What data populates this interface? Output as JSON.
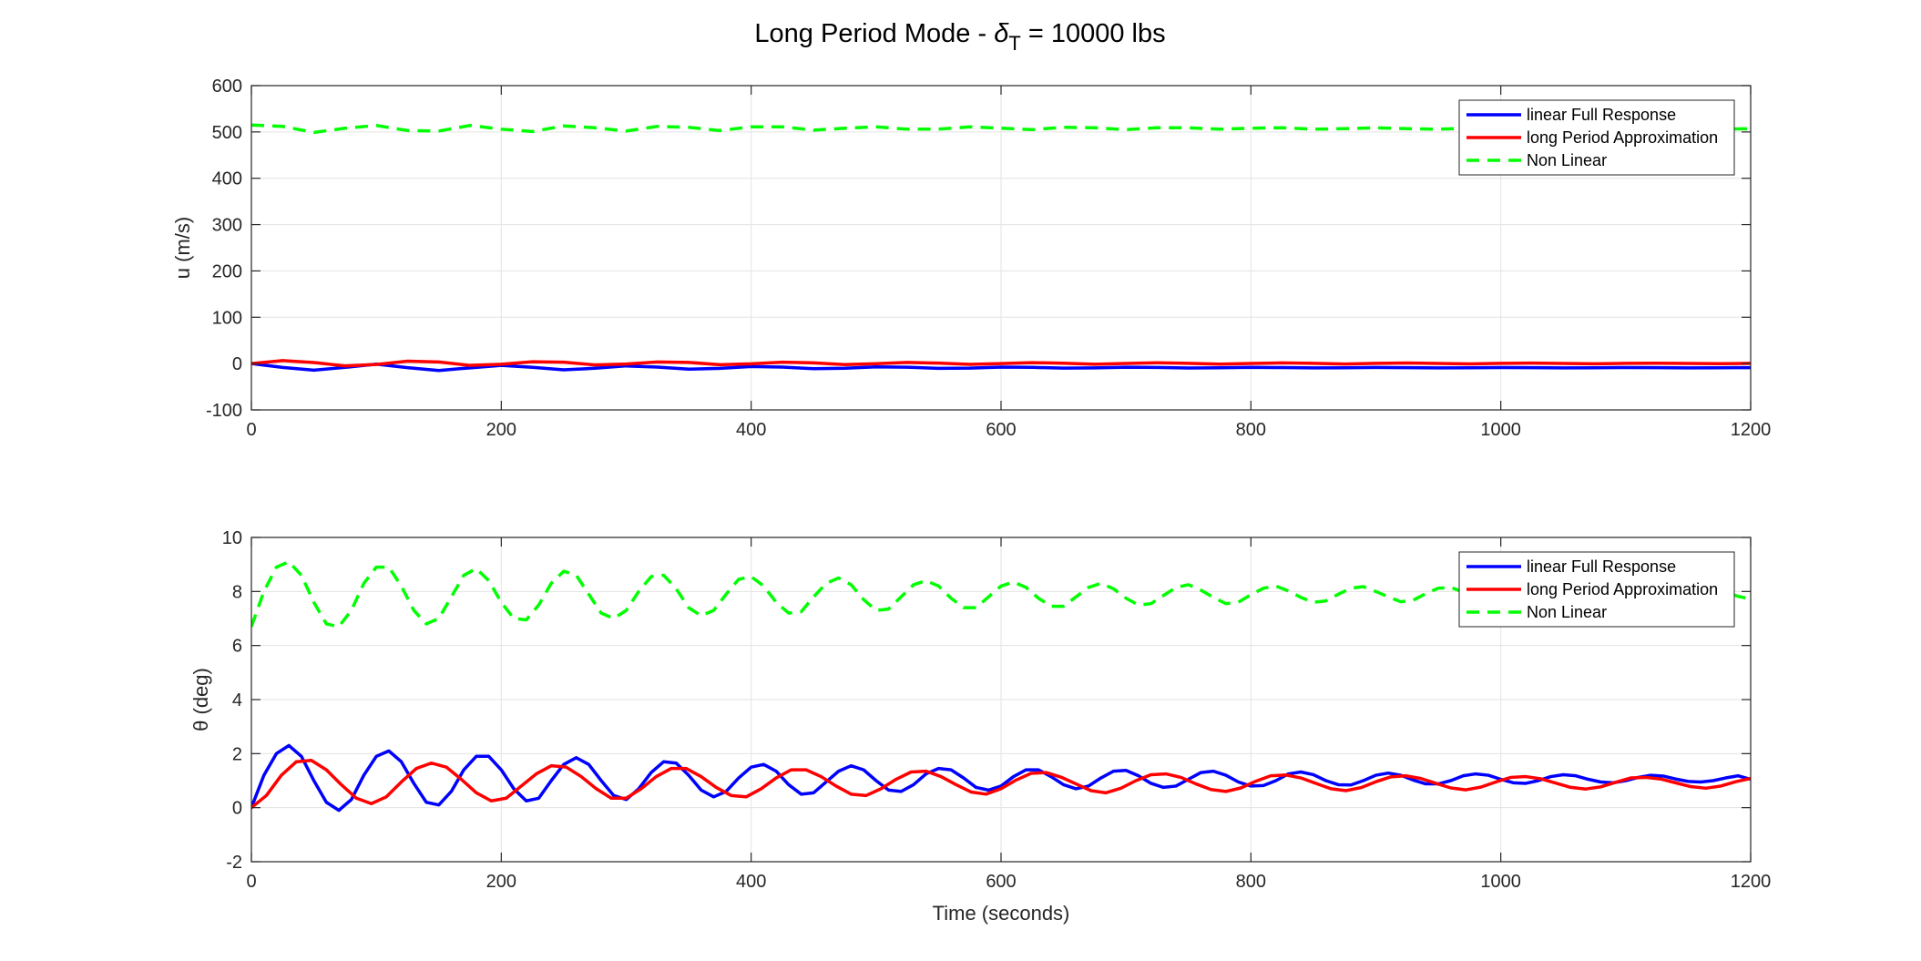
{
  "figure": {
    "title_main": "Long Period Mode - ",
    "title_symbol": "δ",
    "title_subscript": "T",
    "title_rest": " = 10000 lbs"
  },
  "chart_data": [
    {
      "type": "line",
      "xlabel": "",
      "ylabel": "u (m/s)",
      "xlim": [
        0,
        1200
      ],
      "ylim": [
        -100,
        600
      ],
      "xticks": [
        0,
        200,
        400,
        600,
        800,
        1000,
        1200
      ],
      "yticks": [
        -100,
        0,
        100,
        200,
        300,
        400,
        500,
        600
      ],
      "xtick_labels": [
        "0",
        "200",
        "400",
        "600",
        "800",
        "1000",
        "1200"
      ],
      "ytick_labels": [
        "-100",
        "0",
        "100",
        "200",
        "300",
        "400",
        "500",
        "600"
      ],
      "grid": true,
      "legend_position": "top-right",
      "series": [
        {
          "name": "linear Full Response",
          "color": "#0000ff",
          "dash": "solid",
          "x": [
            0,
            25,
            50,
            75,
            100,
            125,
            150,
            175,
            200,
            225,
            250,
            275,
            300,
            325,
            350,
            375,
            400,
            425,
            450,
            475,
            500,
            525,
            550,
            575,
            600,
            625,
            650,
            675,
            700,
            725,
            750,
            775,
            800,
            825,
            850,
            875,
            900,
            925,
            950,
            975,
            1000,
            1025,
            1050,
            1075,
            1100,
            1125,
            1150,
            1175,
            1200
          ],
          "y": [
            0,
            -8.4,
            -14.3,
            -8.2,
            -1.3,
            -8.8,
            -14.9,
            -9.2,
            -3.8,
            -8.1,
            -13.5,
            -10.1,
            -5.0,
            -7.6,
            -12.0,
            -10.2,
            -6.4,
            -7.6,
            -11.0,
            -10.1,
            -7.0,
            -7.9,
            -10.3,
            -9.7,
            -7.5,
            -8.2,
            -9.8,
            -9.3,
            -7.8,
            -8.4,
            -9.6,
            -9.1,
            -8.1,
            -8.6,
            -9.4,
            -9.0,
            -8.3,
            -8.7,
            -9.3,
            -9.0,
            -8.5,
            -8.8,
            -9.2,
            -9.0,
            -8.6,
            -8.8,
            -9.2,
            -9.0,
            -8.8
          ]
        },
        {
          "name": "long Period Approximation",
          "color": "#ff0000",
          "dash": "solid",
          "x": [
            0,
            25,
            50,
            75,
            100,
            125,
            150,
            175,
            200,
            225,
            250,
            275,
            300,
            325,
            350,
            375,
            400,
            425,
            450,
            475,
            500,
            525,
            550,
            575,
            600,
            625,
            650,
            675,
            700,
            725,
            750,
            775,
            800,
            825,
            850,
            875,
            900,
            925,
            950,
            975,
            1000,
            1025,
            1050,
            1075,
            1100,
            1125,
            1150,
            1175,
            1200
          ],
          "y": [
            0,
            6.5,
            2.2,
            -5.0,
            -2.0,
            5.2,
            3.4,
            -4.0,
            -1.5,
            4.0,
            3.0,
            -3.0,
            -1.0,
            3.5,
            2.5,
            -2.5,
            -0.5,
            3.0,
            1.5,
            -2.2,
            -0.2,
            2.4,
            1.0,
            -1.8,
            0,
            2.0,
            0.8,
            -1.5,
            0.2,
            1.7,
            0.6,
            -1.2,
            0.4,
            1.4,
            0.5,
            -0.9,
            0.5,
            1.2,
            0.4,
            -0.7,
            0.5,
            1.0,
            0.4,
            -0.5,
            0.5,
            0.9,
            0.4,
            -0.3,
            0.5
          ]
        },
        {
          "name": "Non Linear",
          "color": "#00ff00",
          "dash": "dashed",
          "x": [
            0,
            25,
            50,
            75,
            100,
            125,
            150,
            175,
            200,
            225,
            250,
            275,
            300,
            325,
            350,
            375,
            400,
            425,
            450,
            475,
            500,
            525,
            550,
            575,
            600,
            625,
            650,
            675,
            700,
            725,
            750,
            775,
            800,
            825,
            850,
            875,
            900,
            925,
            950,
            975,
            1000,
            1025,
            1050,
            1075,
            1100,
            1125,
            1150,
            1175,
            1200
          ],
          "y": [
            515,
            512,
            499,
            508,
            514,
            503,
            502,
            514,
            506,
            501,
            513,
            509,
            502,
            512,
            510,
            503,
            511,
            511,
            504,
            508,
            511,
            506,
            506,
            511,
            508,
            505,
            510,
            509,
            505,
            509,
            509,
            506,
            508,
            509,
            506,
            507,
            509,
            507,
            506,
            508,
            507,
            506,
            508,
            507,
            506,
            508,
            507,
            506,
            507
          ]
        }
      ]
    },
    {
      "type": "line",
      "xlabel": "Time (seconds)",
      "ylabel": "θ (deg)",
      "xlim": [
        0,
        1200
      ],
      "ylim": [
        -2,
        10
      ],
      "xticks": [
        0,
        200,
        400,
        600,
        800,
        1000,
        1200
      ],
      "yticks": [
        -2,
        0,
        2,
        4,
        6,
        8,
        10
      ],
      "xtick_labels": [
        "0",
        "200",
        "400",
        "600",
        "800",
        "1000",
        "1200"
      ],
      "ytick_labels": [
        "-2",
        "0",
        "2",
        "4",
        "6",
        "8",
        "10"
      ],
      "grid": true,
      "legend_position": "top-right",
      "series": [
        {
          "name": "linear Full Response",
          "color": "#0000ff",
          "dash": "solid",
          "x": [
            0,
            10,
            20,
            30,
            40,
            50,
            60,
            70,
            80,
            90,
            100,
            110,
            120,
            130,
            140,
            150,
            160,
            170,
            180,
            190,
            200,
            210,
            220,
            230,
            240,
            250,
            260,
            270,
            280,
            290,
            300,
            310,
            320,
            330,
            340,
            350,
            360,
            370,
            380,
            390,
            400,
            410,
            420,
            430,
            440,
            450,
            460,
            470,
            480,
            490,
            500,
            510,
            520,
            530,
            540,
            550,
            560,
            570,
            580,
            590,
            600,
            610,
            620,
            630,
            640,
            650,
            660,
            670,
            680,
            690,
            700,
            710,
            720,
            730,
            740,
            750,
            760,
            770,
            780,
            790,
            800,
            810,
            820,
            830,
            840,
            850,
            860,
            870,
            880,
            890,
            900,
            910,
            920,
            930,
            940,
            950,
            960,
            970,
            980,
            990,
            1000,
            1010,
            1020,
            1030,
            1040,
            1050,
            1060,
            1070,
            1080,
            1090,
            1100,
            1110,
            1120,
            1130,
            1140,
            1150,
            1160,
            1170,
            1180,
            1190,
            1200
          ],
          "y": [
            0.0,
            1.2,
            2.0,
            2.3,
            1.9,
            1.0,
            0.2,
            -0.1,
            0.3,
            1.2,
            1.9,
            2.1,
            1.7,
            0.9,
            0.2,
            0.1,
            0.6,
            1.4,
            1.9,
            1.9,
            1.4,
            0.7,
            0.25,
            0.35,
            1.0,
            1.6,
            1.85,
            1.6,
            1.0,
            0.45,
            0.3,
            0.7,
            1.3,
            1.7,
            1.65,
            1.2,
            0.65,
            0.4,
            0.6,
            1.1,
            1.5,
            1.6,
            1.35,
            0.85,
            0.5,
            0.55,
            0.95,
            1.35,
            1.55,
            1.4,
            1.0,
            0.65,
            0.6,
            0.85,
            1.25,
            1.45,
            1.4,
            1.1,
            0.75,
            0.65,
            0.8,
            1.15,
            1.4,
            1.4,
            1.15,
            0.85,
            0.7,
            0.8,
            1.1,
            1.35,
            1.38,
            1.18,
            0.9,
            0.75,
            0.8,
            1.05,
            1.3,
            1.35,
            1.2,
            0.95,
            0.8,
            0.82,
            1.0,
            1.25,
            1.32,
            1.22,
            1.0,
            0.85,
            0.84,
            1.0,
            1.2,
            1.28,
            1.2,
            1.02,
            0.88,
            0.88,
            1.0,
            1.18,
            1.25,
            1.2,
            1.05,
            0.92,
            0.9,
            1.0,
            1.15,
            1.22,
            1.18,
            1.05,
            0.95,
            0.92,
            1.0,
            1.12,
            1.2,
            1.17,
            1.06,
            0.97,
            0.95,
            1.0,
            1.1,
            1.18,
            1.05
          ]
        },
        {
          "name": "long Period Approximation",
          "color": "#ff0000",
          "dash": "solid",
          "x": [
            0,
            12,
            24,
            36,
            48,
            60,
            72,
            84,
            96,
            108,
            120,
            132,
            144,
            156,
            168,
            180,
            192,
            204,
            216,
            228,
            240,
            252,
            264,
            276,
            288,
            300,
            312,
            324,
            336,
            348,
            360,
            372,
            384,
            396,
            408,
            420,
            432,
            444,
            456,
            468,
            480,
            492,
            504,
            516,
            528,
            540,
            552,
            564,
            576,
            588,
            600,
            612,
            624,
            636,
            648,
            660,
            672,
            684,
            696,
            708,
            720,
            732,
            744,
            756,
            768,
            780,
            792,
            804,
            816,
            828,
            840,
            852,
            864,
            876,
            888,
            900,
            912,
            924,
            936,
            948,
            960,
            972,
            984,
            996,
            1008,
            1020,
            1032,
            1044,
            1056,
            1068,
            1080,
            1092,
            1104,
            1116,
            1128,
            1140,
            1152,
            1164,
            1176,
            1188,
            1200
          ],
          "y": [
            0.0,
            0.45,
            1.2,
            1.7,
            1.75,
            1.4,
            0.85,
            0.35,
            0.15,
            0.4,
            0.95,
            1.45,
            1.65,
            1.5,
            1.05,
            0.55,
            0.25,
            0.35,
            0.8,
            1.25,
            1.55,
            1.5,
            1.15,
            0.7,
            0.35,
            0.35,
            0.7,
            1.15,
            1.45,
            1.45,
            1.15,
            0.75,
            0.45,
            0.4,
            0.7,
            1.1,
            1.4,
            1.4,
            1.15,
            0.8,
            0.5,
            0.45,
            0.7,
            1.05,
            1.32,
            1.35,
            1.15,
            0.85,
            0.58,
            0.5,
            0.7,
            1.02,
            1.27,
            1.3,
            1.13,
            0.88,
            0.63,
            0.55,
            0.72,
            1.0,
            1.22,
            1.25,
            1.12,
            0.88,
            0.67,
            0.6,
            0.73,
            0.98,
            1.18,
            1.21,
            1.1,
            0.9,
            0.7,
            0.63,
            0.74,
            0.96,
            1.14,
            1.18,
            1.08,
            0.9,
            0.73,
            0.66,
            0.76,
            0.95,
            1.12,
            1.15,
            1.07,
            0.91,
            0.75,
            0.69,
            0.77,
            0.94,
            1.1,
            1.12,
            1.06,
            0.92,
            0.78,
            0.72,
            0.8,
            0.96,
            1.08
          ]
        },
        {
          "name": "Non Linear",
          "color": "#00ff00",
          "dash": "dashed",
          "x": [
            0,
            10,
            20,
            30,
            40,
            50,
            60,
            70,
            80,
            90,
            100,
            110,
            120,
            130,
            140,
            150,
            160,
            170,
            180,
            190,
            200,
            210,
            220,
            230,
            240,
            250,
            260,
            270,
            280,
            290,
            300,
            310,
            320,
            330,
            340,
            350,
            360,
            370,
            380,
            390,
            400,
            410,
            420,
            430,
            440,
            450,
            460,
            470,
            480,
            490,
            500,
            510,
            520,
            530,
            540,
            550,
            560,
            570,
            580,
            590,
            600,
            610,
            620,
            630,
            640,
            650,
            660,
            670,
            680,
            690,
            700,
            710,
            720,
            730,
            740,
            750,
            760,
            770,
            780,
            790,
            800,
            810,
            820,
            830,
            840,
            850,
            860,
            870,
            880,
            890,
            900,
            910,
            920,
            930,
            940,
            950,
            960,
            970,
            980,
            990,
            1000,
            1010,
            1020,
            1030,
            1040,
            1050,
            1060,
            1070,
            1080,
            1090,
            1100,
            1110,
            1120,
            1130,
            1140,
            1150,
            1160,
            1170,
            1180,
            1190,
            1200
          ],
          "y": [
            6.7,
            8.0,
            8.9,
            9.1,
            8.6,
            7.6,
            6.8,
            6.7,
            7.3,
            8.3,
            8.9,
            8.9,
            8.2,
            7.3,
            6.8,
            7.0,
            7.8,
            8.6,
            8.85,
            8.4,
            7.6,
            7.0,
            6.95,
            7.5,
            8.3,
            8.75,
            8.6,
            7.9,
            7.2,
            7.0,
            7.3,
            8.0,
            8.55,
            8.6,
            8.1,
            7.4,
            7.1,
            7.3,
            7.9,
            8.45,
            8.55,
            8.2,
            7.6,
            7.2,
            7.25,
            7.8,
            8.3,
            8.5,
            8.25,
            7.7,
            7.3,
            7.35,
            7.8,
            8.25,
            8.4,
            8.2,
            7.75,
            7.4,
            7.4,
            7.8,
            8.2,
            8.35,
            8.15,
            7.75,
            7.45,
            7.45,
            7.8,
            8.15,
            8.3,
            8.1,
            7.75,
            7.5,
            7.55,
            7.85,
            8.15,
            8.25,
            8.05,
            7.78,
            7.55,
            7.6,
            7.88,
            8.12,
            8.2,
            8.02,
            7.78,
            7.6,
            7.65,
            7.9,
            8.12,
            8.18,
            8.0,
            7.8,
            7.62,
            7.68,
            7.92,
            8.12,
            8.15,
            7.98,
            7.8,
            7.65,
            7.7,
            7.92,
            8.1,
            8.12,
            7.98,
            7.8,
            7.68,
            7.72,
            7.95,
            8.1,
            8.1,
            7.98,
            7.82,
            7.7,
            7.75,
            7.95,
            8.08,
            8.08,
            7.97,
            7.82,
            7.72
          ]
        }
      ]
    }
  ]
}
